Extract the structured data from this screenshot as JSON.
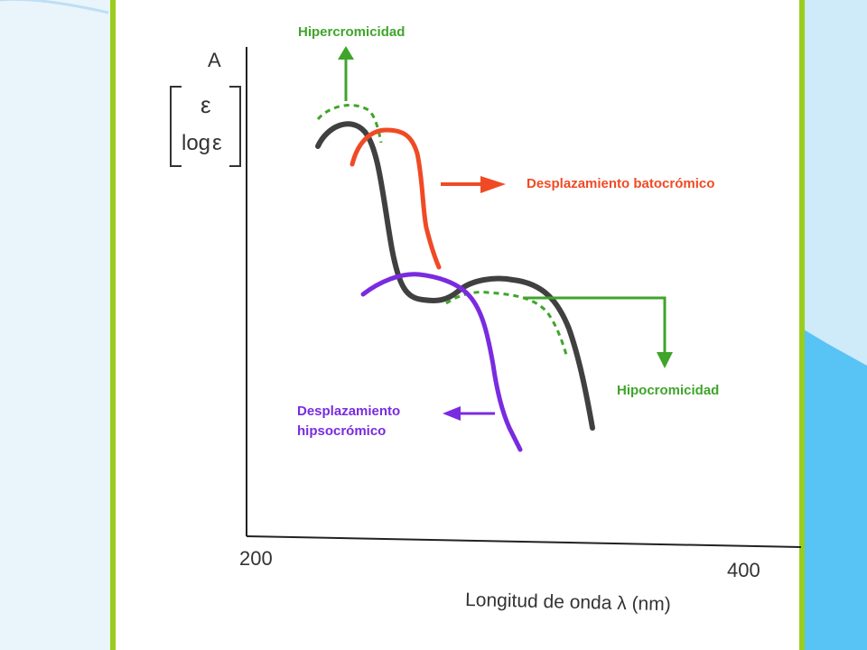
{
  "colors": {
    "frame": "#9acd1e",
    "slide_left": "#eaf4fb",
    "slide_right": "#cfeaf8",
    "slide_accent": "#58c3f5",
    "black_curve": "#404040",
    "green": "#3fa52a",
    "red": "#f04a25",
    "purple": "#7a2be0"
  },
  "axes": {
    "y_label_main": "A",
    "y_label_eps": "ε",
    "y_label_log_prefix": "log",
    "y_label_log_eps": "ε",
    "x_label": "Longitud de onda λ (nm)",
    "x_tick_min": "200",
    "x_tick_max": "400"
  },
  "annotations": {
    "hyperchromicity": "Hipercromicidad",
    "bathochromic": "Desplazamiento batocrómico",
    "hypochromicity": "Hipocromicidad",
    "hypsochromic_line1": "Desplazamiento",
    "hypsochromic_line2": "hipsocrómico"
  }
}
